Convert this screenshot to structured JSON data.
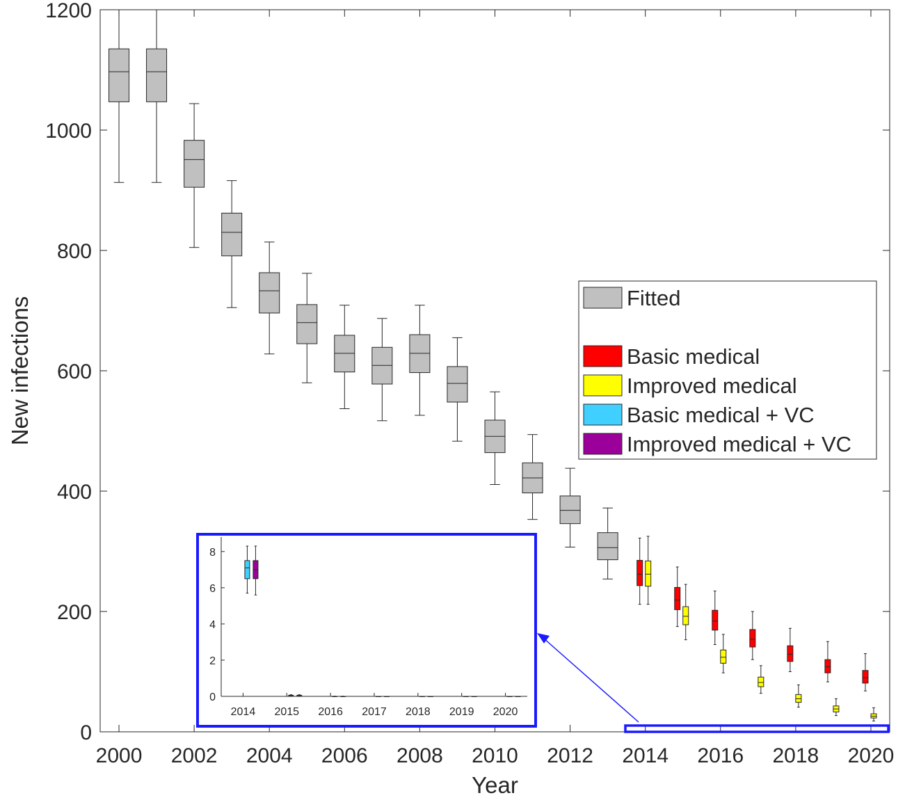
{
  "chart_data": {
    "type": "box",
    "xlabel": "Year",
    "ylabel": "New infections",
    "xlim": [
      1999.5,
      2020.5
    ],
    "ylim": [
      0,
      1200
    ],
    "xticks": [
      "2000",
      "2002",
      "2004",
      "2006",
      "2008",
      "2010",
      "2012",
      "2014",
      "2016",
      "2018",
      "2020"
    ],
    "yticks": [
      "0",
      "200",
      "400",
      "600",
      "800",
      "1000",
      "1200"
    ],
    "legend": {
      "position": "right",
      "entries": [
        {
          "label": "Fitted",
          "color": "#c0c0c0"
        },
        {
          "label": "Basic medical",
          "color": "#ff0000"
        },
        {
          "label": "Improved medical",
          "color": "#ffff00"
        },
        {
          "label": "Basic medical + VC",
          "color": "#40d0ff"
        },
        {
          "label": "Improved medical + VC",
          "color": "#9b009b"
        }
      ]
    },
    "series": [
      {
        "name": "Fitted",
        "color": "#c0c0c0",
        "boxes": [
          {
            "x": 2000,
            "min": 913,
            "q1": 1047,
            "median": 1097,
            "q3": 1135,
            "max": 1200
          },
          {
            "x": 2001,
            "min": 913,
            "q1": 1047,
            "median": 1097,
            "q3": 1135,
            "max": 1200
          },
          {
            "x": 2002,
            "min": 805,
            "q1": 905,
            "median": 951,
            "q3": 983,
            "max": 1044
          },
          {
            "x": 2003,
            "min": 705,
            "q1": 791,
            "median": 830,
            "q3": 862,
            "max": 916
          },
          {
            "x": 2004,
            "min": 628,
            "q1": 696,
            "median": 733,
            "q3": 763,
            "max": 814
          },
          {
            "x": 2005,
            "min": 580,
            "q1": 645,
            "median": 680,
            "q3": 710,
            "max": 762
          },
          {
            "x": 2006,
            "min": 537,
            "q1": 598,
            "median": 629,
            "q3": 659,
            "max": 709
          },
          {
            "x": 2007,
            "min": 517,
            "q1": 578,
            "median": 609,
            "q3": 639,
            "max": 687
          },
          {
            "x": 2008,
            "min": 526,
            "q1": 597,
            "median": 629,
            "q3": 660,
            "max": 709
          },
          {
            "x": 2009,
            "min": 483,
            "q1": 548,
            "median": 579,
            "q3": 607,
            "max": 655
          },
          {
            "x": 2010,
            "min": 411,
            "q1": 464,
            "median": 491,
            "q3": 518,
            "max": 565
          },
          {
            "x": 2011,
            "min": 353,
            "q1": 397,
            "median": 422,
            "q3": 447,
            "max": 494
          },
          {
            "x": 2012,
            "min": 307,
            "q1": 346,
            "median": 368,
            "q3": 392,
            "max": 438
          },
          {
            "x": 2013,
            "min": 254,
            "q1": 286,
            "median": 306,
            "q3": 331,
            "max": 372
          }
        ]
      },
      {
        "name": "Basic medical",
        "color": "#ff0000",
        "boxes": [
          {
            "x": 2014,
            "min": 212,
            "q1": 243,
            "median": 262,
            "q3": 285,
            "max": 322
          },
          {
            "x": 2015,
            "min": 175,
            "q1": 203,
            "median": 219,
            "q3": 240,
            "max": 274
          },
          {
            "x": 2016,
            "min": 145,
            "q1": 169,
            "median": 184,
            "q3": 202,
            "max": 234
          },
          {
            "x": 2017,
            "min": 120,
            "q1": 141,
            "median": 154,
            "q3": 170,
            "max": 200
          },
          {
            "x": 2018,
            "min": 100,
            "q1": 117,
            "median": 129,
            "q3": 143,
            "max": 172
          },
          {
            "x": 2019,
            "min": 83,
            "q1": 98,
            "median": 108,
            "q3": 120,
            "max": 150
          },
          {
            "x": 2020,
            "min": 68,
            "q1": 81,
            "median": 90,
            "q3": 102,
            "max": 130
          }
        ]
      },
      {
        "name": "Improved medical",
        "color": "#ffff00",
        "boxes": [
          {
            "x": 2014,
            "min": 212,
            "q1": 242,
            "median": 262,
            "q3": 284,
            "max": 325
          },
          {
            "x": 2015,
            "min": 153,
            "q1": 178,
            "median": 192,
            "q3": 208,
            "max": 245
          },
          {
            "x": 2016,
            "min": 98,
            "q1": 114,
            "median": 124,
            "q3": 136,
            "max": 162
          },
          {
            "x": 2017,
            "min": 64,
            "q1": 75,
            "median": 82,
            "q3": 91,
            "max": 110
          },
          {
            "x": 2018,
            "min": 41,
            "q1": 49,
            "median": 55,
            "q3": 62,
            "max": 78
          },
          {
            "x": 2019,
            "min": 27,
            "q1": 33,
            "median": 38,
            "q3": 43,
            "max": 55
          },
          {
            "x": 2020,
            "min": 18,
            "q1": 23,
            "median": 26,
            "q3": 30,
            "max": 40
          }
        ]
      }
    ],
    "inset": {
      "xticks": [
        "2014",
        "2015",
        "2016",
        "2017",
        "2018",
        "2019",
        "2020"
      ],
      "yticks": [
        "0",
        "2",
        "4",
        "6",
        "8"
      ],
      "xlim": [
        2013.5,
        2020.5
      ],
      "ylim": [
        0,
        8.8
      ],
      "series": [
        {
          "name": "Basic medical + VC",
          "color": "#40d0ff",
          "boxes": [
            {
              "x": 2014,
              "min": 5.7,
              "q1": 6.5,
              "median": 7.1,
              "q3": 7.5,
              "max": 8.3
            },
            {
              "x": 2015,
              "min": 0.02,
              "q1": 0.04,
              "median": 0.05,
              "q3": 0.06,
              "max": 0.09
            },
            {
              "x": 2016,
              "min": 0,
              "q1": 0,
              "median": 0,
              "q3": 0,
              "max": 0.01
            },
            {
              "x": 2017,
              "min": 0,
              "q1": 0,
              "median": 0,
              "q3": 0,
              "max": 0
            },
            {
              "x": 2018,
              "min": 0,
              "q1": 0,
              "median": 0,
              "q3": 0,
              "max": 0
            },
            {
              "x": 2019,
              "min": 0,
              "q1": 0,
              "median": 0,
              "q3": 0,
              "max": 0
            },
            {
              "x": 2020,
              "min": 0,
              "q1": 0,
              "median": 0,
              "q3": 0,
              "max": 0
            }
          ]
        },
        {
          "name": "Improved medical + VC",
          "color": "#9b009b",
          "boxes": [
            {
              "x": 2014,
              "min": 5.6,
              "q1": 6.5,
              "median": 7.0,
              "q3": 7.5,
              "max": 8.3
            },
            {
              "x": 2015,
              "min": 0.02,
              "q1": 0.04,
              "median": 0.05,
              "q3": 0.06,
              "max": 0.09
            },
            {
              "x": 2016,
              "min": 0,
              "q1": 0,
              "median": 0,
              "q3": 0,
              "max": 0.01
            },
            {
              "x": 2017,
              "min": 0,
              "q1": 0,
              "median": 0,
              "q3": 0,
              "max": 0
            },
            {
              "x": 2018,
              "min": 0,
              "q1": 0,
              "median": 0,
              "q3": 0,
              "max": 0
            },
            {
              "x": 2019,
              "min": 0,
              "q1": 0,
              "median": 0,
              "q3": 0,
              "max": 0
            },
            {
              "x": 2020,
              "min": 0,
              "q1": 0,
              "median": 0,
              "q3": 0,
              "max": 0
            }
          ]
        }
      ]
    }
  }
}
